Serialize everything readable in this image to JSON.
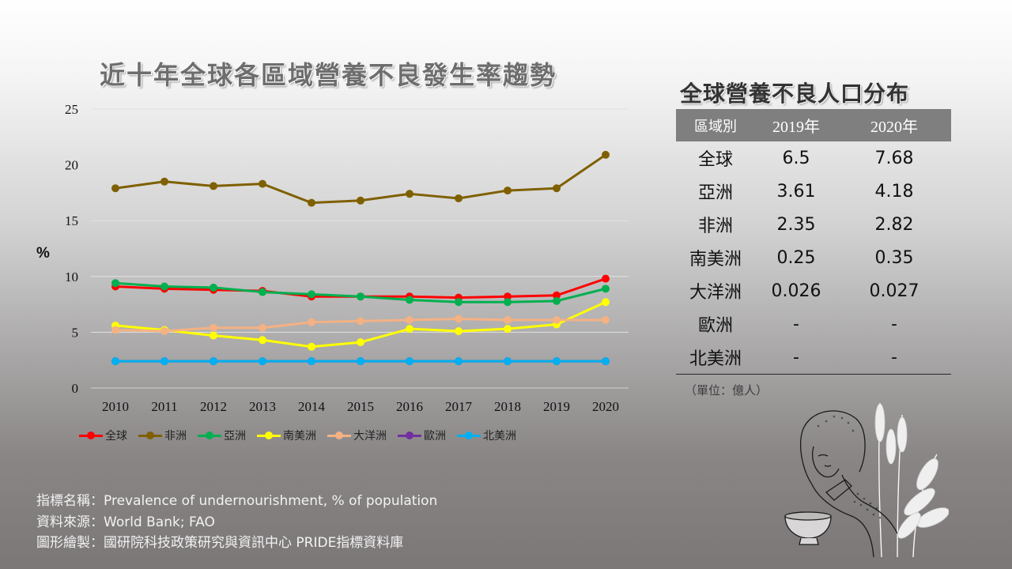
{
  "chart_data": {
    "type": "line",
    "title": "近十年全球各區域營養不良發生率趨勢",
    "ylabel": "%",
    "xlabel": "",
    "ylim": [
      0,
      25
    ],
    "yticks": [
      0,
      5,
      10,
      15,
      20,
      25
    ],
    "grid": true,
    "legend_position": "bottom",
    "categories": [
      "2010",
      "2011",
      "2012",
      "2013",
      "2014",
      "2015",
      "2016",
      "2017",
      "2018",
      "2019",
      "2020"
    ],
    "series": [
      {
        "name": "全球",
        "color": "#ff0000",
        "values": [
          9.1,
          8.9,
          8.8,
          8.7,
          8.2,
          8.2,
          8.2,
          8.1,
          8.2,
          8.3,
          9.8
        ]
      },
      {
        "name": "非洲",
        "color": "#7f6000",
        "values": [
          17.9,
          18.5,
          18.1,
          18.3,
          16.6,
          16.8,
          17.4,
          17.0,
          17.7,
          17.9,
          20.9
        ]
      },
      {
        "name": "亞洲",
        "color": "#00b050",
        "values": [
          9.4,
          9.1,
          9.0,
          8.6,
          8.4,
          8.2,
          7.9,
          7.7,
          7.7,
          7.8,
          8.9
        ]
      },
      {
        "name": "南美洲",
        "color": "#ffff00",
        "values": [
          5.6,
          5.2,
          4.7,
          4.3,
          3.7,
          4.1,
          5.3,
          5.1,
          5.3,
          5.7,
          7.7
        ]
      },
      {
        "name": "大洋洲",
        "color": "#f4b183",
        "values": [
          5.2,
          5.1,
          5.4,
          5.4,
          5.9,
          6.0,
          6.1,
          6.2,
          6.1,
          6.1,
          6.1
        ]
      },
      {
        "name": "歐洲",
        "color": "#7030a0",
        "values": [
          2.4,
          2.4,
          2.4,
          2.4,
          2.4,
          2.4,
          2.4,
          2.4,
          2.4,
          2.4,
          2.4
        ]
      },
      {
        "name": "北美洲",
        "color": "#00b0f0",
        "values": [
          2.4,
          2.4,
          2.4,
          2.4,
          2.4,
          2.4,
          2.4,
          2.4,
          2.4,
          2.4,
          2.4
        ]
      }
    ]
  },
  "table": {
    "title": "全球營養不良人口分布",
    "headers": [
      "區域別",
      "2019年",
      "2020年"
    ],
    "rows": [
      [
        "全球",
        "6.5",
        "7.68"
      ],
      [
        "亞洲",
        "3.61",
        "4.18"
      ],
      [
        "非洲",
        "2.35",
        "2.82"
      ],
      [
        "南美洲",
        "0.25",
        "0.35"
      ],
      [
        "大洋洲",
        "0.026",
        "0.027"
      ],
      [
        "歐洲",
        "-",
        "-"
      ],
      [
        "北美洲",
        "-",
        "-"
      ]
    ],
    "unit_note": "（單位：億人）"
  },
  "notes": {
    "indicator": "指標名稱：Prevalence of undernourishment, % of population",
    "source": "資料來源：World Bank; FAO",
    "made_by": "圖形繪製：國研院科技政策研究與資訊中心 PRIDE指標資料庫"
  },
  "illustration": {
    "icon": "praying-farmer-wheat-illustration"
  }
}
